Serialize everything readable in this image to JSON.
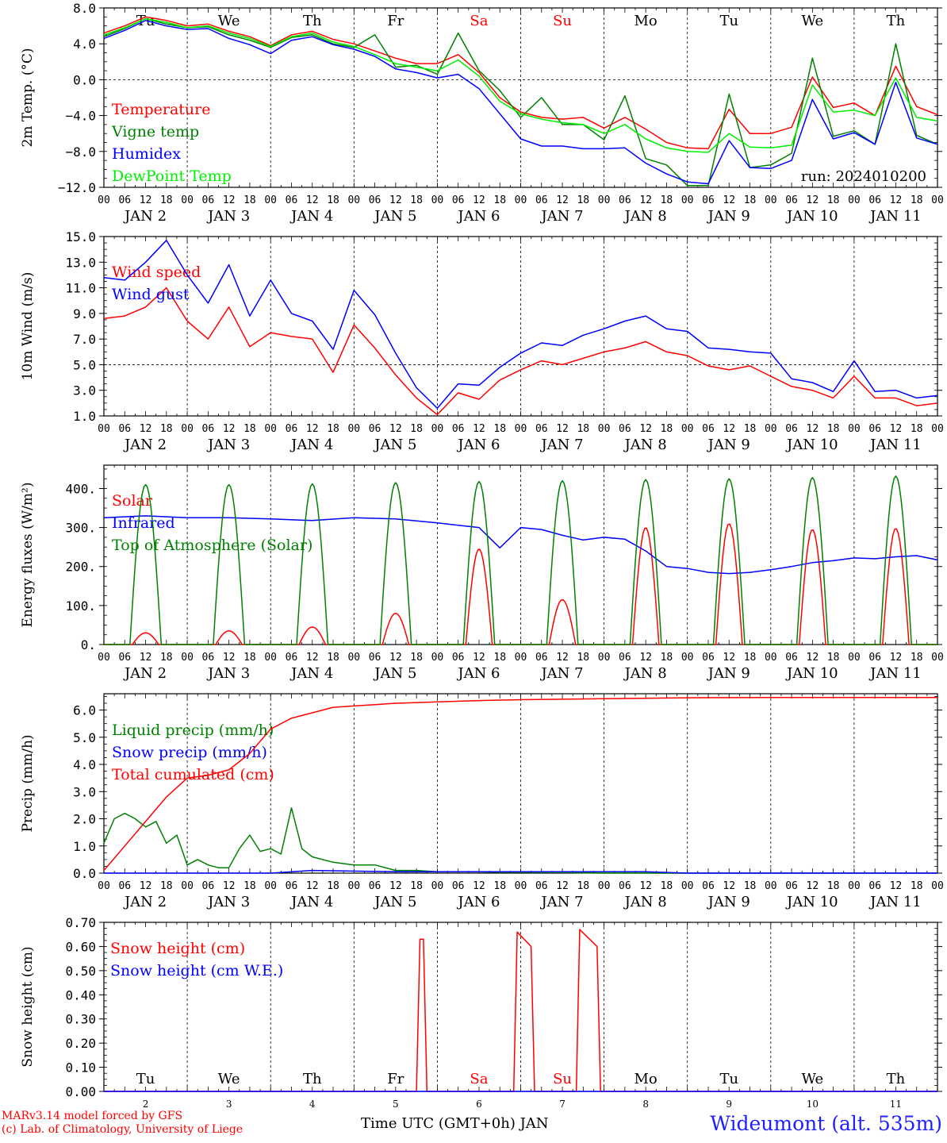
{
  "chart_data": [
    {
      "type": "line",
      "ylabel": "2m Temp. (°C)",
      "ylim": [
        -12,
        8
      ],
      "yticks": [
        "8.0",
        "4.0",
        "0.0",
        "−4.0",
        "−8.0",
        "−12.0"
      ],
      "ytick_values": [
        8,
        4,
        0,
        -4,
        -8,
        -12
      ],
      "xlim": [
        0,
        240
      ],
      "day_labels": [
        {
          "label": "Tu",
          "color": "#000000"
        },
        {
          "label": "We",
          "color": "#000000"
        },
        {
          "label": "Th",
          "color": "#000000"
        },
        {
          "label": "Fr",
          "color": "#000000"
        },
        {
          "label": "Sa",
          "color": "#ff0000"
        },
        {
          "label": "Su",
          "color": "#ff0000"
        },
        {
          "label": "Mo",
          "color": "#000000"
        },
        {
          "label": "Tu",
          "color": "#000000"
        },
        {
          "label": "We",
          "color": "#000000"
        },
        {
          "label": "Th",
          "color": "#000000"
        }
      ],
      "annotation": "run: 2024010200",
      "series": [
        {
          "name": "Temperature",
          "color": "#ff0000",
          "x": [
            0,
            6,
            12,
            18,
            24,
            30,
            36,
            42,
            48,
            54,
            60,
            66,
            72,
            78,
            84,
            90,
            96,
            102,
            108,
            114,
            120,
            126,
            132,
            138,
            144,
            150,
            156,
            162,
            168,
            174,
            180,
            186,
            192,
            198,
            204,
            210,
            216,
            222,
            228,
            234,
            240
          ],
          "y": [
            5.2,
            6.0,
            7.0,
            6.6,
            6.0,
            6.2,
            5.4,
            4.8,
            3.8,
            5.0,
            5.4,
            4.5,
            4.0,
            3.2,
            2.4,
            1.8,
            1.8,
            2.8,
            0.8,
            -2.0,
            -3.6,
            -4.2,
            -4.4,
            -4.2,
            -5.4,
            -4.2,
            -5.5,
            -7.0,
            -7.6,
            -7.7,
            -3.3,
            -6.0,
            -6.0,
            -5.3,
            0.3,
            -3.1,
            -2.6,
            -4.0,
            1.5,
            -3.0,
            -3.9
          ]
        },
        {
          "name": "Vigne temp",
          "color": "#008000",
          "x": [
            0,
            6,
            12,
            18,
            24,
            30,
            36,
            42,
            48,
            54,
            60,
            66,
            72,
            78,
            84,
            90,
            96,
            102,
            108,
            114,
            120,
            126,
            132,
            138,
            144,
            150,
            156,
            162,
            168,
            174,
            180,
            186,
            192,
            198,
            204,
            210,
            216,
            222,
            228,
            234,
            240
          ],
          "y": [
            4.8,
            5.7,
            6.8,
            6.2,
            5.8,
            5.9,
            5.0,
            4.4,
            3.6,
            4.7,
            5.0,
            4.0,
            3.6,
            5.0,
            1.4,
            1.6,
            0.6,
            5.2,
            1.0,
            -1.2,
            -4.2,
            -2.0,
            -5.0,
            -5.0,
            -6.7,
            -1.8,
            -8.8,
            -9.5,
            -11.8,
            -11.8,
            -1.6,
            -9.8,
            -9.5,
            -8.2,
            2.4,
            -6.3,
            -5.7,
            -7.2,
            4.0,
            -6.2,
            -7.2
          ]
        },
        {
          "name": "Humidex",
          "color": "#0000ff",
          "x": [
            0,
            6,
            12,
            18,
            24,
            30,
            36,
            42,
            48,
            54,
            60,
            66,
            72,
            78,
            84,
            90,
            96,
            102,
            108,
            114,
            120,
            126,
            132,
            138,
            144,
            150,
            156,
            162,
            168,
            174,
            180,
            186,
            192,
            198,
            204,
            210,
            216,
            222,
            228,
            234,
            240
          ],
          "y": [
            4.6,
            5.5,
            6.6,
            6.0,
            5.6,
            5.7,
            4.6,
            3.9,
            2.9,
            4.4,
            4.8,
            3.9,
            3.4,
            2.6,
            1.2,
            0.8,
            0.2,
            0.6,
            -1.0,
            -3.8,
            -6.6,
            -7.4,
            -7.4,
            -7.7,
            -7.7,
            -7.6,
            -9.3,
            -10.5,
            -11.4,
            -11.6,
            -6.8,
            -9.8,
            -9.9,
            -9.0,
            -2.2,
            -6.6,
            -5.9,
            -7.2,
            -0.3,
            -6.5,
            -7.2
          ]
        },
        {
          "name": "DewPoint Temp",
          "color": "#00ee00",
          "x": [
            0,
            6,
            12,
            18,
            24,
            30,
            36,
            42,
            48,
            54,
            60,
            66,
            72,
            78,
            84,
            90,
            96,
            102,
            108,
            114,
            120,
            126,
            132,
            138,
            144,
            150,
            156,
            162,
            168,
            174,
            180,
            186,
            192,
            198,
            204,
            210,
            216,
            222,
            228,
            234,
            240
          ],
          "y": [
            5.0,
            5.8,
            6.8,
            6.4,
            5.8,
            6.0,
            5.2,
            4.6,
            3.7,
            4.8,
            5.2,
            4.2,
            3.7,
            2.8,
            1.8,
            1.4,
            1.0,
            2.2,
            0.4,
            -2.4,
            -3.8,
            -4.4,
            -4.8,
            -5.0,
            -6.0,
            -5.0,
            -6.6,
            -7.6,
            -8.0,
            -8.1,
            -6.0,
            -7.5,
            -7.6,
            -7.3,
            -0.6,
            -3.6,
            -3.4,
            -4.0,
            0.2,
            -4.2,
            -4.6
          ]
        }
      ]
    },
    {
      "type": "line",
      "ylabel": "10m Wind (m/s)",
      "ylim": [
        1,
        15
      ],
      "yticks": [
        "15.0",
        "13.0",
        "11.0",
        "9.0",
        "7.0",
        "5.0",
        "3.0",
        "1.0"
      ],
      "ytick_values": [
        15,
        13,
        11,
        9,
        7,
        5,
        3,
        1
      ],
      "xlim": [
        0,
        240
      ],
      "series": [
        {
          "name": "Wind speed",
          "color": "#ff0000",
          "x": [
            0,
            6,
            12,
            18,
            24,
            30,
            36,
            42,
            48,
            54,
            60,
            66,
            72,
            78,
            84,
            90,
            96,
            102,
            108,
            114,
            120,
            126,
            132,
            138,
            144,
            150,
            156,
            162,
            168,
            174,
            180,
            186,
            192,
            198,
            204,
            210,
            216,
            222,
            228,
            234,
            240
          ],
          "y": [
            8.6,
            8.8,
            9.5,
            11.0,
            8.4,
            7.0,
            9.5,
            6.4,
            7.5,
            7.2,
            7.0,
            4.4,
            8.1,
            6.3,
            4.2,
            2.4,
            1.1,
            2.8,
            2.3,
            3.8,
            4.6,
            5.3,
            5.0,
            5.5,
            6.0,
            6.3,
            6.8,
            6.0,
            5.7,
            4.9,
            4.6,
            4.9,
            4.1,
            3.3,
            3.0,
            2.4,
            4.1,
            2.4,
            2.4,
            1.8,
            2.0
          ]
        },
        {
          "name": "Wind gust",
          "color": "#0000ff",
          "x": [
            0,
            6,
            12,
            18,
            24,
            30,
            36,
            42,
            48,
            54,
            60,
            66,
            72,
            78,
            84,
            90,
            96,
            102,
            108,
            114,
            120,
            126,
            132,
            138,
            144,
            150,
            156,
            162,
            168,
            174,
            180,
            186,
            192,
            198,
            204,
            210,
            216,
            222,
            228,
            234,
            240
          ],
          "y": [
            11.8,
            11.6,
            13.0,
            14.7,
            12.0,
            9.8,
            12.8,
            8.8,
            11.6,
            9.0,
            8.4,
            6.2,
            10.8,
            8.9,
            5.9,
            3.2,
            1.6,
            3.5,
            3.4,
            4.8,
            5.9,
            6.7,
            6.5,
            7.3,
            7.8,
            8.4,
            8.8,
            7.8,
            7.6,
            6.3,
            6.2,
            6.0,
            5.9,
            3.9,
            3.6,
            2.9,
            5.3,
            2.9,
            3.0,
            2.4,
            2.6
          ]
        }
      ]
    },
    {
      "type": "line",
      "ylabel": "Energy fluxes (W/m²)",
      "ylim": [
        0,
        460
      ],
      "yticks": [
        "400.",
        "300.",
        "200.",
        "100.",
        "0."
      ],
      "ytick_values": [
        400,
        300,
        200,
        100,
        0
      ],
      "xlim": [
        0,
        240
      ],
      "series": [
        {
          "name": "Solar",
          "color": "#ff0000",
          "daily_peak": [
            30,
            35,
            45,
            80,
            245,
            115,
            300,
            310,
            295,
            298
          ]
        },
        {
          "name": "Infrared",
          "color": "#0000ff",
          "x": [
            0,
            12,
            24,
            36,
            48,
            60,
            72,
            84,
            96,
            102,
            108,
            114,
            120,
            126,
            132,
            138,
            144,
            150,
            156,
            162,
            168,
            174,
            180,
            186,
            192,
            198,
            204,
            210,
            216,
            222,
            228,
            234,
            240
          ],
          "y": [
            325,
            330,
            325,
            325,
            322,
            318,
            325,
            322,
            312,
            306,
            300,
            248,
            300,
            295,
            280,
            268,
            275,
            270,
            240,
            200,
            195,
            185,
            182,
            185,
            192,
            200,
            210,
            215,
            222,
            220,
            225,
            228,
            217
          ]
        },
        {
          "name": "Top of Atmosphere (Solar)",
          "color": "#008000",
          "daily_peak": [
            410,
            410,
            412,
            415,
            418,
            420,
            423,
            425,
            428,
            432
          ]
        }
      ]
    },
    {
      "type": "line",
      "ylabel": "Precip (mm/h)",
      "ylim": [
        0,
        6.6
      ],
      "yticks": [
        "6.0",
        "5.0",
        "4.0",
        "3.0",
        "2.0",
        "1.0",
        "0.0"
      ],
      "ytick_values": [
        6,
        5,
        4,
        3,
        2,
        1,
        0
      ],
      "xlim": [
        0,
        240
      ],
      "series": [
        {
          "name": "Liquid precip (mm/h)",
          "color": "#008000",
          "x": [
            0,
            3,
            6,
            9,
            12,
            15,
            18,
            21,
            24,
            27,
            30,
            33,
            36,
            39,
            42,
            45,
            48,
            51,
            54,
            57,
            60,
            66,
            72,
            78,
            84,
            90,
            96,
            102,
            108,
            114,
            120,
            132,
            144,
            168,
            240
          ],
          "y": [
            1.1,
            2.0,
            2.2,
            2.0,
            1.7,
            1.9,
            1.1,
            1.4,
            0.3,
            0.5,
            0.3,
            0.2,
            0.2,
            0.9,
            1.4,
            0.8,
            0.9,
            0.7,
            2.4,
            0.9,
            0.6,
            0.4,
            0.3,
            0.3,
            0.1,
            0.1,
            0.05,
            0.05,
            0.05,
            0.03,
            0.03,
            0.02,
            0.0,
            0.0,
            0.0
          ]
        },
        {
          "name": "Snow precip (mm/h)",
          "color": "#0000ff",
          "x": [
            0,
            48,
            60,
            84,
            120,
            156,
            168,
            240
          ],
          "y": [
            0.0,
            0.0,
            0.1,
            0.05,
            0.05,
            0.05,
            0.0,
            0.0
          ]
        },
        {
          "name": "Total cumulated (cm)",
          "color": "#ff0000",
          "x": [
            0,
            6,
            12,
            18,
            24,
            30,
            36,
            42,
            48,
            54,
            60,
            66,
            72,
            78,
            84,
            96,
            108,
            120,
            144,
            168,
            192,
            240
          ],
          "y": [
            0.1,
            1.0,
            1.9,
            2.8,
            3.5,
            3.6,
            3.8,
            4.4,
            5.3,
            5.7,
            5.9,
            6.1,
            6.15,
            6.2,
            6.25,
            6.3,
            6.35,
            6.38,
            6.42,
            6.45,
            6.46,
            6.46
          ]
        }
      ]
    },
    {
      "type": "line",
      "ylabel": "Snow height (cm)",
      "ylim": [
        0,
        0.7
      ],
      "yticks": [
        "0.70",
        "0.60",
        "0.50",
        "0.40",
        "0.30",
        "0.20",
        "0.10",
        "0.00"
      ],
      "ytick_values": [
        0.7,
        0.6,
        0.5,
        0.4,
        0.3,
        0.2,
        0.1,
        0.0
      ],
      "xlim": [
        0,
        240
      ],
      "day_labels": [
        {
          "label": "Tu",
          "color": "#000000"
        },
        {
          "label": "We",
          "color": "#000000"
        },
        {
          "label": "Th",
          "color": "#000000"
        },
        {
          "label": "Fr",
          "color": "#000000"
        },
        {
          "label": "Sa",
          "color": "#ff0000"
        },
        {
          "label": "Su",
          "color": "#ff0000"
        },
        {
          "label": "Mo",
          "color": "#000000"
        },
        {
          "label": "Tu",
          "color": "#000000"
        },
        {
          "label": "We",
          "color": "#000000"
        },
        {
          "label": "Th",
          "color": "#000000"
        }
      ],
      "day_numbers": [
        "2",
        "3",
        "4",
        "5",
        "6",
        "7",
        "8",
        "9",
        "10",
        "11"
      ],
      "series": [
        {
          "name": "Snow height (cm)",
          "color": "#ff0000",
          "x": [
            0,
            90,
            91,
            92,
            93,
            118,
            119,
            123,
            124,
            125,
            136,
            137,
            142,
            143,
            144,
            240
          ],
          "y": [
            0,
            0,
            0.63,
            0.63,
            0,
            0,
            0.66,
            0.6,
            0,
            0,
            0,
            0.67,
            0.6,
            0,
            0,
            0
          ]
        },
        {
          "name": "Snow height (cm W.E.)",
          "color": "#0000ff",
          "x": [
            0,
            240
          ],
          "y": [
            0,
            0
          ]
        }
      ]
    }
  ],
  "x_axis": {
    "hour_ticks": [
      "00",
      "06",
      "12",
      "18"
    ],
    "final_tick": "00",
    "date_labels": [
      "JAN  2",
      "JAN  3",
      "JAN  4",
      "JAN  5",
      "JAN  6",
      "JAN  7",
      "JAN  8",
      "JAN  9",
      "JAN 10",
      "JAN 11"
    ],
    "title": "Time UTC (GMT+0h) JAN"
  },
  "footer": {
    "credit_line1": "MARv3.14 model forced by GFS",
    "credit_line2": "(c) Lab. of Climatology, University of Liege",
    "station": "Wideumont (alt. 535m)"
  },
  "colors": {
    "red": "#ff0000",
    "green": "#008000",
    "blue": "#0000ff",
    "light_green": "#00ee00",
    "station_blue": "#2020ff"
  }
}
